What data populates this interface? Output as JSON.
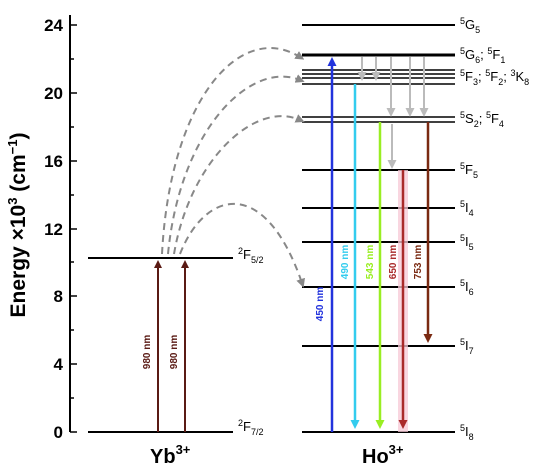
{
  "axis": {
    "label_main": "Energy ×10",
    "label_exp": "3",
    "label_unit_open": " (cm",
    "label_unit_exp": "−1",
    "label_unit_close": ")",
    "ticks": [
      "0",
      "4",
      "8",
      "12",
      "16",
      "20",
      "24"
    ]
  },
  "ions": {
    "yb": {
      "name": "Yb",
      "charge": "3+"
    },
    "ho": {
      "name": "Ho",
      "charge": "3+"
    }
  },
  "yb_levels": {
    "ground": {
      "main": "2",
      "sym": "F",
      "sub": "7/2"
    },
    "excited": {
      "main": "2",
      "sym": "F",
      "sub": "5/2"
    }
  },
  "ho_levels": {
    "g5": {
      "l1": "5",
      "t1": "G",
      "s1": "5"
    },
    "g6f1": {
      "l1": "5",
      "t1": "G",
      "s1": "6",
      "sep": "; ",
      "l2": "5",
      "t2": "F",
      "s2": "1"
    },
    "f3f2k8": {
      "l1": "5",
      "t1": "F",
      "s1": "3",
      "sep1": "; ",
      "l2": "5",
      "t2": "F",
      "s2": "2",
      "sep2": "; ",
      "l3": "3",
      "t3": "K",
      "s3": "8"
    },
    "s2f4": {
      "l1": "5",
      "t1": "S",
      "s1": "2",
      "sep": "; ",
      "l2": "5",
      "t2": "F",
      "s2": "4"
    },
    "f5": {
      "l1": "5",
      "t1": "F",
      "s1": "5"
    },
    "i4": {
      "l1": "5",
      "t1": "I",
      "s1": "4"
    },
    "i5": {
      "l1": "5",
      "t1": "I",
      "s1": "5"
    },
    "i6": {
      "l1": "5",
      "t1": "I",
      "s1": "6"
    },
    "i7": {
      "l1": "5",
      "t1": "I",
      "s1": "7"
    },
    "i8": {
      "l1": "5",
      "t1": "I",
      "s1": "8"
    }
  },
  "transitions": {
    "yb_pump_1": "980 nm",
    "yb_pump_2": "980 nm",
    "ho_450": "450 nm",
    "ho_490": "490 nm",
    "ho_543": "543 nm",
    "ho_650": "650 nm",
    "ho_753": "753 nm"
  },
  "colors": {
    "pump": "#5a1a14",
    "blue": "#2233dd",
    "cyan": "#33ccee",
    "green": "#99ee22",
    "red": "#aa2a2a",
    "darkred": "#7a2a12",
    "gray": "#bbbbbb",
    "transfer": "#888888"
  }
}
